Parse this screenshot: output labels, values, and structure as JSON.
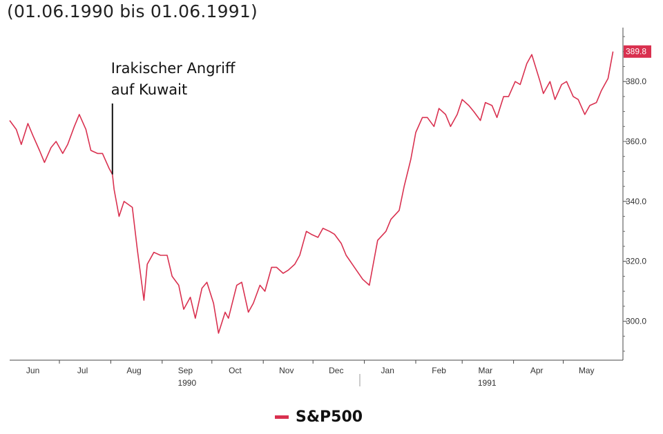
{
  "title": "(01.06.1990 bis 01.06.1991)",
  "colors": {
    "series": "#d9304f",
    "axis": "#444444",
    "text": "#222222"
  },
  "chart_data": {
    "type": "line",
    "title": "",
    "xlabel": "",
    "ylabel": "",
    "x_tick_labels": [
      "Jun",
      "Jul",
      "Aug",
      "Sep",
      "Oct",
      "Nov",
      "Dec",
      "Jan",
      "Feb",
      "Mar",
      "Apr",
      "May"
    ],
    "year_labels": [
      "1990",
      "1991"
    ],
    "y_ticks": [
      300.0,
      320.0,
      340.0,
      360.0,
      380.0
    ],
    "y_tick_labels": [
      "300.0",
      "320.0",
      "340.0",
      "360.0",
      "380.0"
    ],
    "ylim": [
      287,
      398
    ],
    "grid": false,
    "legend": "bottom-center",
    "last_value_label": "389.8",
    "annotation": {
      "lines": [
        "Irakischer Angriff",
        "auf Kuwait"
      ],
      "date": "1990-08-02"
    },
    "series": [
      {
        "name": "S&P500",
        "x": [
          "1990-06-01",
          "1990-06-05",
          "1990-06-08",
          "1990-06-12",
          "1990-06-15",
          "1990-06-19",
          "1990-06-22",
          "1990-06-26",
          "1990-06-29",
          "1990-07-03",
          "1990-07-06",
          "1990-07-10",
          "1990-07-13",
          "1990-07-17",
          "1990-07-20",
          "1990-07-24",
          "1990-07-27",
          "1990-07-31",
          "1990-08-02",
          "1990-08-03",
          "1990-08-06",
          "1990-08-09",
          "1990-08-14",
          "1990-08-17",
          "1990-08-21",
          "1990-08-23",
          "1990-08-27",
          "1990-08-31",
          "1990-09-04",
          "1990-09-07",
          "1990-09-11",
          "1990-09-14",
          "1990-09-18",
          "1990-09-21",
          "1990-09-25",
          "1990-09-28",
          "1990-10-02",
          "1990-10-05",
          "1990-10-09",
          "1990-10-11",
          "1990-10-16",
          "1990-10-19",
          "1990-10-23",
          "1990-10-26",
          "1990-10-30",
          "1990-11-02",
          "1990-11-06",
          "1990-11-09",
          "1990-11-13",
          "1990-11-16",
          "1990-11-20",
          "1990-11-23",
          "1990-11-27",
          "1990-11-30",
          "1990-12-04",
          "1990-12-07",
          "1990-12-11",
          "1990-12-14",
          "1990-12-18",
          "1990-12-21",
          "1990-12-26",
          "1990-12-31",
          "1991-01-04",
          "1991-01-09",
          "1991-01-14",
          "1991-01-17",
          "1991-01-22",
          "1991-01-25",
          "1991-01-29",
          "1991-02-01",
          "1991-02-05",
          "1991-02-08",
          "1991-02-12",
          "1991-02-15",
          "1991-02-19",
          "1991-02-22",
          "1991-02-26",
          "1991-03-01",
          "1991-03-05",
          "1991-03-08",
          "1991-03-12",
          "1991-03-15",
          "1991-03-19",
          "1991-03-22",
          "1991-03-26",
          "1991-03-29",
          "1991-04-02",
          "1991-04-05",
          "1991-04-09",
          "1991-04-12",
          "1991-04-17",
          "1991-04-19",
          "1991-04-23",
          "1991-04-26",
          "1991-04-30",
          "1991-05-03",
          "1991-05-07",
          "1991-05-10",
          "1991-05-14",
          "1991-05-17",
          "1991-05-21",
          "1991-05-24",
          "1991-05-28",
          "1991-05-31"
        ],
        "values": [
          367,
          364,
          359,
          366,
          362,
          357,
          353,
          358,
          360,
          356,
          359,
          365,
          369,
          364,
          357,
          356,
          356,
          351,
          349,
          344,
          335,
          340,
          338,
          324,
          307,
          319,
          323,
          322,
          322,
          315,
          312,
          304,
          308,
          301,
          311,
          313,
          306,
          296,
          303,
          301,
          312,
          313,
          303,
          306,
          312,
          310,
          318,
          318,
          316,
          317,
          319,
          322,
          330,
          329,
          328,
          331,
          330,
          329,
          326,
          322,
          318,
          314,
          312,
          327,
          330,
          334,
          337,
          345,
          354,
          363,
          368,
          368,
          365,
          371,
          369,
          365,
          369,
          374,
          372,
          370,
          367,
          373,
          372,
          368,
          375,
          375,
          380,
          379,
          386,
          389,
          380,
          376,
          380,
          374,
          379,
          380,
          375,
          374,
          369,
          372,
          373,
          377,
          381,
          390
        ]
      }
    ]
  }
}
